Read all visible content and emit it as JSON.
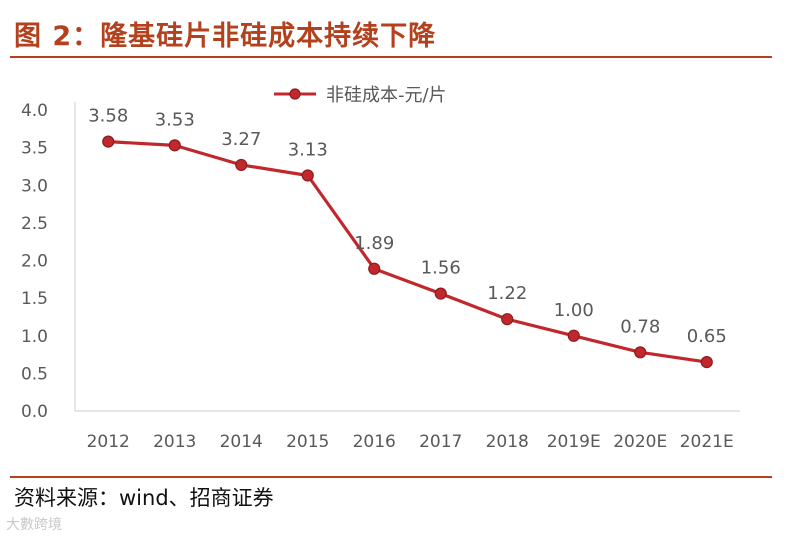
{
  "figure_title": "图 2：隆基硅片非硅成本持续下降",
  "source_note": "资料来源：wind、招商证券",
  "watermark": "大數跨境",
  "colors": {
    "accent": "#b3411d",
    "series": "#c0282d",
    "axis": "#d6d6d6",
    "text": "#595959"
  },
  "chart_data": {
    "type": "line",
    "title": "",
    "xlabel": "",
    "ylabel": "",
    "categories": [
      "2012",
      "2013",
      "2014",
      "2015",
      "2016",
      "2017",
      "2018",
      "2019E",
      "2020E",
      "2021E"
    ],
    "series": [
      {
        "name": "非硅成本-元/片",
        "values": [
          3.58,
          3.53,
          3.27,
          3.13,
          1.89,
          1.56,
          1.22,
          1.0,
          0.78,
          0.65
        ]
      }
    ],
    "value_labels": [
      "3.58",
      "3.53",
      "3.27",
      "3.13",
      "1.89",
      "1.56",
      "1.22",
      "1.00",
      "0.78",
      "0.65"
    ],
    "ylim": [
      0,
      4.0
    ],
    "yticks": [
      "0.0",
      "0.5",
      "1.0",
      "1.5",
      "2.0",
      "2.5",
      "3.0",
      "3.5",
      "4.0"
    ],
    "grid": false,
    "legend_position": "top"
  }
}
